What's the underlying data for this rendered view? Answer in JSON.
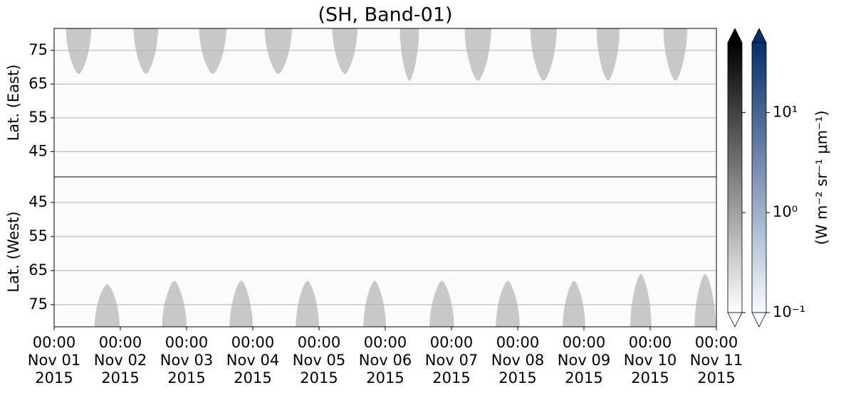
{
  "chart_data": {
    "type": "heatmap",
    "title": "(SH, Band-01)",
    "band_color": "#c8c8c8",
    "grid": true,
    "xlim": [
      0,
      10
    ],
    "xticks": [
      {
        "value": 0,
        "label": [
          "00:00",
          "Nov 01",
          "2015"
        ]
      },
      {
        "value": 1,
        "label": [
          "00:00",
          "Nov 02",
          "2015"
        ]
      },
      {
        "value": 2,
        "label": [
          "00:00",
          "Nov 03",
          "2015"
        ]
      },
      {
        "value": 3,
        "label": [
          "00:00",
          "Nov 04",
          "2015"
        ]
      },
      {
        "value": 4,
        "label": [
          "00:00",
          "Nov 05",
          "2015"
        ]
      },
      {
        "value": 5,
        "label": [
          "00:00",
          "Nov 06",
          "2015"
        ]
      },
      {
        "value": 6,
        "label": [
          "00:00",
          "Nov 07",
          "2015"
        ]
      },
      {
        "value": 7,
        "label": [
          "00:00",
          "Nov 08",
          "2015"
        ]
      },
      {
        "value": 8,
        "label": [
          "00:00",
          "Nov 09",
          "2015"
        ]
      },
      {
        "value": 9,
        "label": [
          "00:00",
          "Nov 10",
          "2015"
        ]
      },
      {
        "value": 10,
        "label": [
          "00:00",
          "Nov 11",
          "2015"
        ]
      }
    ],
    "panels": [
      {
        "ylabel": "Lat. (East)",
        "ylim": [
          37.5,
          81.5
        ],
        "inverted": false,
        "yticks": [
          45,
          55,
          65,
          75
        ],
        "bands": [
          {
            "start": 0.18,
            "end": 0.56,
            "lat": 68
          },
          {
            "start": 1.2,
            "end": 1.57,
            "lat": 68
          },
          {
            "start": 2.19,
            "end": 2.6,
            "lat": 68
          },
          {
            "start": 3.18,
            "end": 3.59,
            "lat": 68
          },
          {
            "start": 4.2,
            "end": 4.58,
            "lat": 68
          },
          {
            "start": 5.22,
            "end": 5.51,
            "lat": 66
          },
          {
            "start": 6.2,
            "end": 6.6,
            "lat": 66
          },
          {
            "start": 7.19,
            "end": 7.59,
            "lat": 66
          },
          {
            "start": 8.19,
            "end": 8.54,
            "lat": 66
          },
          {
            "start": 9.2,
            "end": 9.56,
            "lat": 66
          }
        ]
      },
      {
        "ylabel": "Lat. (West)",
        "ylim": [
          37.5,
          81.5
        ],
        "inverted": true,
        "yticks": [
          45,
          55,
          65,
          75
        ],
        "bands": [
          {
            "start": 0.61,
            "end": 0.99,
            "lat": 69
          },
          {
            "start": 1.63,
            "end": 2.0,
            "lat": 68
          },
          {
            "start": 2.65,
            "end": 3.0,
            "lat": 68
          },
          {
            "start": 3.65,
            "end": 4.0,
            "lat": 68
          },
          {
            "start": 4.67,
            "end": 5.01,
            "lat": 68
          },
          {
            "start": 5.67,
            "end": 6.04,
            "lat": 68
          },
          {
            "start": 6.67,
            "end": 7.03,
            "lat": 68
          },
          {
            "start": 7.68,
            "end": 8.02,
            "lat": 68
          },
          {
            "start": 8.7,
            "end": 9.02,
            "lat": 66
          },
          {
            "start": 9.67,
            "end": 9.99,
            "lat": 66
          }
        ]
      }
    ],
    "colorbar": {
      "label": "(W m⁻² sr⁻¹ μm⁻¹)",
      "log": true,
      "clim": [
        0.1,
        50
      ],
      "ticks": [
        {
          "value": 0.1,
          "label": "10⁻¹"
        },
        {
          "value": 1,
          "label": "10⁰"
        },
        {
          "value": 10,
          "label": "10¹"
        }
      ],
      "colors": [
        [
          "#ffffff",
          "#000000"
        ],
        [
          "#f7fbff",
          "#08306b"
        ]
      ]
    }
  }
}
